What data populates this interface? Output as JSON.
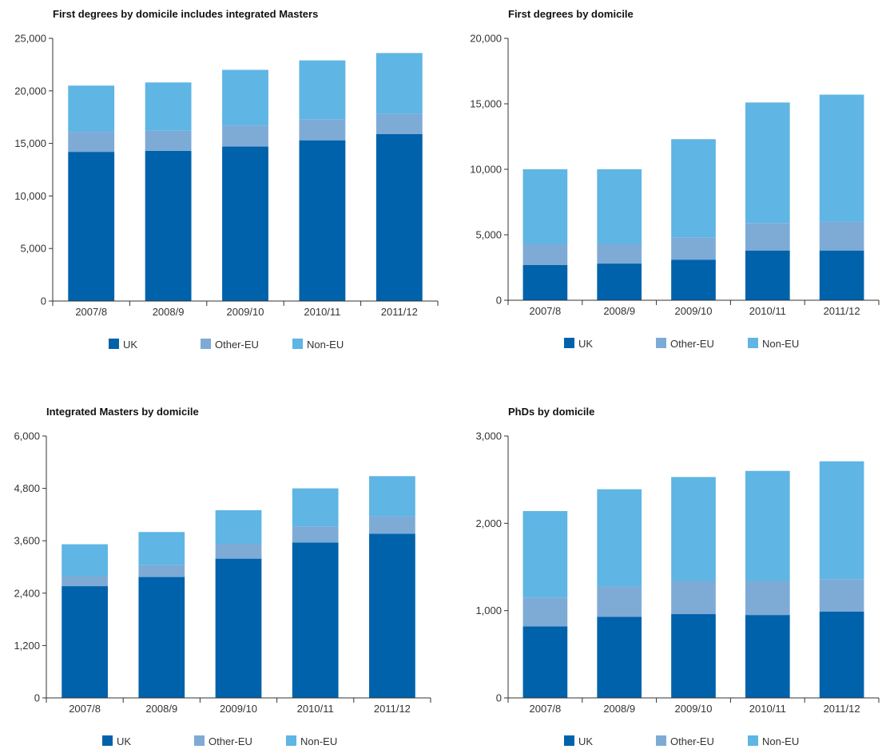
{
  "colors": {
    "UK": "#0062ab",
    "Other-EU": "#7dabd6",
    "Non-EU": "#5fb5e4"
  },
  "chart_data": [
    {
      "type": "bar",
      "stacked": true,
      "title": "First degrees by domicile includes integrated Masters",
      "categories": [
        "2007/8",
        "2008/9",
        "2009/10",
        "2010/11",
        "2011/12"
      ],
      "ylim": [
        0,
        25000
      ],
      "yticks": [
        "0",
        "5,000",
        "10,000",
        "15,000",
        "20,000",
        "25,000"
      ],
      "ytick_values": [
        0,
        5000,
        10000,
        15000,
        20000,
        25000
      ],
      "legend": "bottom",
      "series": [
        {
          "name": "UK",
          "values": [
            14200,
            14300,
            14700,
            15300,
            15900
          ]
        },
        {
          "name": "Other-EU",
          "values": [
            1900,
            1900,
            2000,
            2000,
            1900
          ]
        },
        {
          "name": "Non-EU",
          "values": [
            4400,
            4600,
            5300,
            5600,
            5800
          ]
        }
      ]
    },
    {
      "type": "bar",
      "stacked": true,
      "title": "First degrees by domicile",
      "categories": [
        "2007/8",
        "2008/9",
        "2009/10",
        "2010/11",
        "2011/12"
      ],
      "ylim": [
        0,
        20000
      ],
      "yticks": [
        "0",
        "5,000",
        "10,000",
        "15,000",
        "20,000"
      ],
      "ytick_values": [
        0,
        5000,
        10000,
        15000,
        20000
      ],
      "legend": "bottom",
      "series": [
        {
          "name": "UK",
          "values": [
            2700,
            2800,
            3100,
            3800,
            3800
          ]
        },
        {
          "name": "Other-EU",
          "values": [
            1600,
            1500,
            1700,
            2100,
            2200
          ]
        },
        {
          "name": "Non-EU",
          "values": [
            5700,
            5700,
            7500,
            9200,
            9700
          ]
        }
      ]
    },
    {
      "type": "bar",
      "stacked": true,
      "title": "Integrated Masters by domicile",
      "categories": [
        "2007/8",
        "2008/9",
        "2009/10",
        "2010/11",
        "2011/12"
      ],
      "ylim": [
        0,
        6000
      ],
      "yticks": [
        "0",
        "1,200",
        "2,400",
        "3,600",
        "4,800",
        "6,000"
      ],
      "ytick_values": [
        0,
        1200,
        2400,
        3600,
        4800,
        6000
      ],
      "legend": "bottom",
      "series": [
        {
          "name": "UK",
          "values": [
            2560,
            2770,
            3190,
            3560,
            3760
          ]
        },
        {
          "name": "Other-EU",
          "values": [
            230,
            270,
            340,
            370,
            400
          ]
        },
        {
          "name": "Non-EU",
          "values": [
            730,
            760,
            770,
            870,
            920
          ]
        }
      ]
    },
    {
      "type": "bar",
      "stacked": true,
      "title": "PhDs by domicile",
      "categories": [
        "2007/8",
        "2008/9",
        "2009/10",
        "2010/11",
        "2011/12"
      ],
      "ylim": [
        0,
        3000
      ],
      "yticks": [
        "0",
        "1,000",
        "2,000",
        "3,000"
      ],
      "ytick_values": [
        0,
        1000,
        2000,
        3000
      ],
      "legend": "bottom",
      "series": [
        {
          "name": "UK",
          "values": [
            820,
            930,
            960,
            950,
            990
          ]
        },
        {
          "name": "Other-EU",
          "values": [
            330,
            350,
            380,
            390,
            370
          ]
        },
        {
          "name": "Non-EU",
          "values": [
            990,
            1110,
            1190,
            1260,
            1350
          ]
        }
      ]
    }
  ]
}
